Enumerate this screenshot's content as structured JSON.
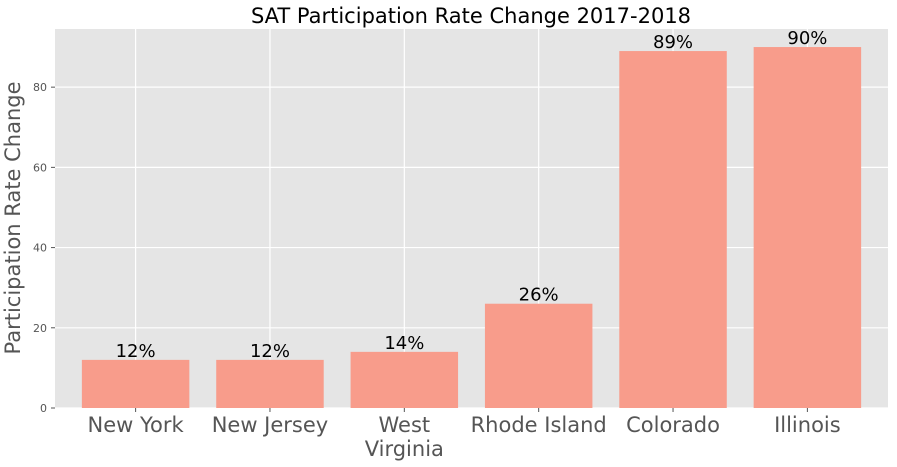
{
  "chart_data": {
    "type": "bar",
    "title": "SAT Participation Rate Change 2017-2018",
    "xlabel": "",
    "ylabel": "Participation Rate Change",
    "categories": [
      "New York",
      "New Jersey",
      "West Virginia",
      "Rhode Island",
      "Colorado",
      "Illinois"
    ],
    "category_lines": [
      [
        "New York"
      ],
      [
        "New Jersey"
      ],
      [
        "West",
        "Virginia"
      ],
      [
        "Rhode Island"
      ],
      [
        "Colorado"
      ],
      [
        "Illinois"
      ]
    ],
    "values": [
      12,
      12,
      14,
      26,
      89,
      90
    ],
    "data_labels": [
      "12%",
      "12%",
      "14%",
      "26%",
      "89%",
      "90%"
    ],
    "yticks": [
      0,
      20,
      40,
      60,
      80
    ],
    "ylim": [
      0,
      94.5
    ],
    "grid": true,
    "bar_color": "#f89c8b",
    "background_color": "#e5e5e5",
    "grid_color": "#ffffff"
  }
}
